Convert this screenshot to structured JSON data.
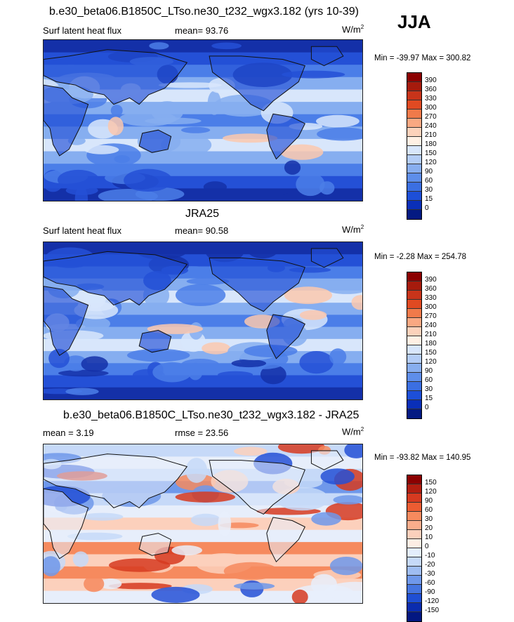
{
  "season": "JJA",
  "unit_text": "W/m",
  "unit_exp": "2",
  "diff_unit": "W/m",
  "panels": [
    {
      "title": "b.e30_beta06.B1850C_LTso.ne30_t232_wgx3.182 (yrs 10-39)",
      "field": "Surf latent heat flux",
      "stat": "mean=  93.76",
      "minmax": "Min = -39.97 Max = 300.82",
      "levels": [
        "390",
        "360",
        "330",
        "300",
        "270",
        "240",
        "210",
        "180",
        "150",
        "120",
        "90",
        "60",
        "30",
        "15",
        "0"
      ],
      "colors": [
        "#8b0000",
        "#a61b0d",
        "#c8341a",
        "#e04a22",
        "#f07a4a",
        "#f9a882",
        "#fcd2bb",
        "#fff0e4",
        "#d8e6fb",
        "#b4cdf6",
        "#88aeef",
        "#5e8eea",
        "#3b6fe2",
        "#1d4fd8",
        "#0a2fb8",
        "#041a82"
      ],
      "map_palette": [
        "#1430a8",
        "#2450d6",
        "#4b7ee8",
        "#86aef0",
        "#d8e6fb",
        "#fbc8ae",
        "#ee8a5c"
      ]
    },
    {
      "title": "JRA25",
      "field": "Surf latent heat flux",
      "stat": "mean=  90.58",
      "minmax": "Min =  -2.28 Max = 254.78",
      "levels": [
        "390",
        "360",
        "330",
        "300",
        "270",
        "240",
        "210",
        "180",
        "150",
        "120",
        "90",
        "60",
        "30",
        "15",
        "0"
      ],
      "colors": [
        "#8b0000",
        "#a61b0d",
        "#c8341a",
        "#e04a22",
        "#f07a4a",
        "#f9a882",
        "#fcd2bb",
        "#fff0e4",
        "#d8e6fb",
        "#b4cdf6",
        "#88aeef",
        "#5e8eea",
        "#3b6fe2",
        "#1d4fd8",
        "#0a2fb8",
        "#041a82"
      ],
      "map_palette": [
        "#1430a8",
        "#2450d6",
        "#4b7ee8",
        "#86aef0",
        "#d8e6fb",
        "#fbc8ae",
        "#ee8a5c"
      ]
    },
    {
      "title": "b.e30_beta06.B1850C_LTso.ne30_t232_wgx3.182 - JRA25",
      "field": "mean =   3.19",
      "stat": "rmse =  23.56",
      "minmax": "Min = -93.82 Max = 140.95",
      "levels": [
        "150",
        "120",
        "90",
        "60",
        "30",
        "20",
        "10",
        "0",
        "-10",
        "-20",
        "-30",
        "-60",
        "-90",
        "-120",
        "-150"
      ],
      "colors": [
        "#8b0000",
        "#b21e10",
        "#d63a20",
        "#ec5c32",
        "#f68a5e",
        "#faad8c",
        "#fcd0bc",
        "#fdeee4",
        "#e4eefc",
        "#c6d9f8",
        "#9fbdf2",
        "#6f98ea",
        "#4575e0",
        "#1f4fd4",
        "#0b2cae",
        "#031781"
      ],
      "map_palette": [
        "#2450d6",
        "#6f98ea",
        "#c6d9f8",
        "#e7eefb",
        "#fcd0bc",
        "#f68a5e",
        "#d63a20"
      ]
    }
  ]
}
